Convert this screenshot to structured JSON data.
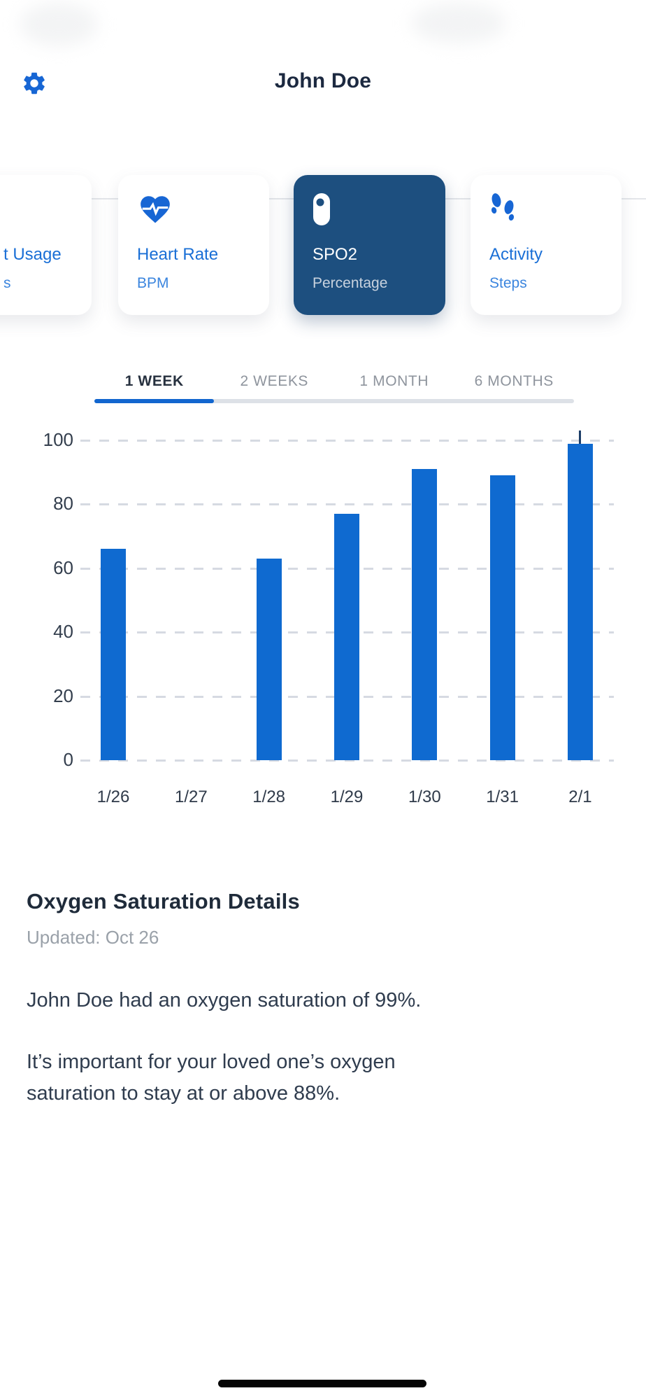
{
  "header": {
    "title": "John Doe"
  },
  "metric_cards": [
    {
      "label": "t Usage",
      "sublabel": "s",
      "icon": "toilet-usage-icon",
      "selected": false
    },
    {
      "label": "Heart Rate",
      "sublabel": "BPM",
      "icon": "heart-rate-icon",
      "selected": false
    },
    {
      "label": "SPO2",
      "sublabel": "Percentage",
      "icon": "oximeter-icon",
      "selected": true
    },
    {
      "label": "Activity",
      "sublabel": "Steps",
      "icon": "footprints-icon",
      "selected": false
    }
  ],
  "time_tabs": [
    {
      "label": "1 WEEK",
      "active": true
    },
    {
      "label": "2 WEEKS",
      "active": false
    },
    {
      "label": "1 MONTH",
      "active": false
    },
    {
      "label": "6 MONTHS",
      "active": false
    }
  ],
  "chart_data": {
    "type": "bar",
    "title": "SPO2 Percentage by day",
    "unit": "%",
    "categories": [
      "1/26",
      "1/27",
      "1/28",
      "1/29",
      "1/30",
      "1/31",
      "2/1"
    ],
    "values": [
      66,
      null,
      63,
      77,
      91,
      89,
      99
    ],
    "ylim": [
      0,
      100
    ],
    "yticks": [
      0,
      20,
      40,
      60,
      80,
      100
    ],
    "xlabel": "",
    "ylabel": "",
    "grid": "dashed-horizontal",
    "legend": "none",
    "bar_color": "#0f6ad0",
    "annotation": {
      "type": "tick-marker",
      "category": "2/1",
      "from": 99,
      "to": 103
    }
  },
  "details": {
    "heading": "Oxygen Saturation Details",
    "updated": "Updated: Oct 26",
    "paragraph1": "John Doe had an oxygen saturation of 99%.",
    "paragraph2": "It’s important for your loved one’s oxygen saturation to stay at or above 88%."
  },
  "colors": {
    "accent_blue": "#1a6fd6",
    "bar_blue": "#0f6ad0",
    "selected_card_navy": "#1d4f7f",
    "tab_active": "#27313f",
    "tab_inactive": "#8e949d",
    "underline_blue": "#1266cf",
    "grid_dash": "#d6dae2",
    "body_text": "#2f3c4e",
    "muted_text": "#9aa1a9"
  }
}
